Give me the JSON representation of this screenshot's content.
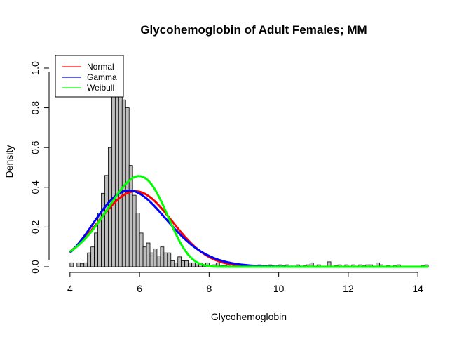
{
  "chart_data": {
    "type": "histogram",
    "title": "Glycohemoglobin of Adult Females; MM",
    "xlabel": "Glycohemoglobin",
    "ylabel": "Density",
    "xlim": [
      3.6,
      14.4
    ],
    "ylim": [
      0.0,
      1.06
    ],
    "x_ticks": [
      {
        "value": 4,
        "label": "4"
      },
      {
        "value": 6,
        "label": "6"
      },
      {
        "value": 8,
        "label": "8"
      },
      {
        "value": 10,
        "label": "10"
      },
      {
        "value": 12,
        "label": "12"
      },
      {
        "value": 14,
        "label": "14"
      }
    ],
    "y_ticks": [
      {
        "value": 0.0,
        "label": "0.0"
      },
      {
        "value": 0.2,
        "label": "0.2"
      },
      {
        "value": 0.4,
        "label": "0.4"
      },
      {
        "value": 0.6,
        "label": "0.6"
      },
      {
        "value": 0.8,
        "label": "0.8"
      },
      {
        "value": 1.0,
        "label": "1.0"
      }
    ],
    "histogram": {
      "bin_start": 4.0,
      "bin_width": 0.1,
      "fill_color": "#bebebe",
      "densities": [
        0.02,
        0,
        0.02,
        0.015,
        0.02,
        0.07,
        0.1,
        0.17,
        0.27,
        0.37,
        0.46,
        0.6,
        0.86,
        1.06,
        0.91,
        0.84,
        0.8,
        0.51,
        0.36,
        0.27,
        0.17,
        0.1,
        0.12,
        0.07,
        0.09,
        0.055,
        0.1,
        0.07,
        0.07,
        0.03,
        0.02,
        0.05,
        0.03,
        0.03,
        0.02,
        0.02,
        0.01,
        0.02,
        0.005,
        0.02,
        0.005,
        0.01,
        0.02,
        0.005,
        0.005,
        0.01,
        0,
        0.005,
        0.005,
        0,
        0,
        0.005,
        0,
        0,
        0.01,
        0,
        0.005,
        0.01,
        0,
        0,
        0.01,
        0.005,
        0.01,
        0,
        0,
        0.01,
        0,
        0.005,
        0.01,
        0.02,
        0,
        0.01,
        0,
        0,
        0.025,
        0,
        0.005,
        0.01,
        0,
        0.01,
        0,
        0.01,
        0,
        0.01,
        0.005,
        0.01,
        0.01,
        0,
        0.02,
        0.01,
        0,
        0.005,
        0,
        0.005,
        0.01,
        0,
        0,
        0,
        0,
        0,
        0,
        0.005,
        0.01
      ]
    },
    "series": [
      {
        "name": "Normal",
        "color": "#ff0000",
        "distribution": "normal",
        "mean": 5.88,
        "sd": 1.05
      },
      {
        "name": "Gamma",
        "color": "#0000ff",
        "distribution": "gamma",
        "shape": 31.2,
        "rate": 5.3
      },
      {
        "name": "Weibull",
        "color": "#00ff00",
        "distribution": "weibull",
        "shape": 7.5,
        "scale": 6.1
      }
    ],
    "legend": {
      "position": "top-left",
      "entries": [
        "Normal",
        "Gamma",
        "Weibull"
      ]
    }
  }
}
